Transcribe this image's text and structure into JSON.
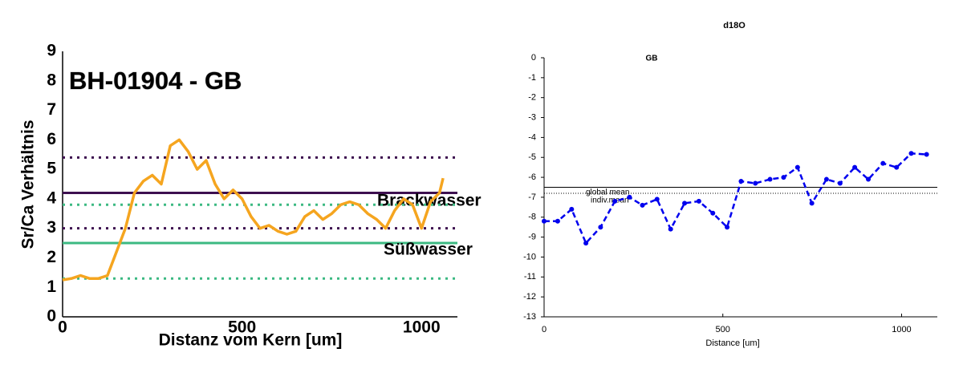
{
  "chart_data": [
    {
      "type": "line",
      "title": "BH-01904 - GB",
      "x_label": "Distanz vom Kern [um]",
      "y_label": "Sr/Ca Verhältnis",
      "xlim": [
        0,
        1100
      ],
      "ylim": [
        0,
        9
      ],
      "xticks": [
        0,
        500,
        1000
      ],
      "yticks": [
        0,
        1,
        2,
        3,
        4,
        5,
        6,
        7,
        8,
        9
      ],
      "reference_lines": [
        {
          "label": "Brackwasser",
          "value": 4.2,
          "color": "#3d0f4f",
          "style": "solid"
        },
        {
          "value": 5.4,
          "color": "#3d0f4f",
          "style": "dotted"
        },
        {
          "value": 3.0,
          "color": "#3d0f4f",
          "style": "dotted"
        },
        {
          "label": "Süßwasser",
          "value": 2.5,
          "color": "#3cb982",
          "style": "solid"
        },
        {
          "value": 3.8,
          "color": "#3cb982",
          "style": "dotted"
        },
        {
          "value": 1.3,
          "color": "#3cb982",
          "style": "dotted"
        }
      ],
      "series": [
        {
          "color": "#f5a51f",
          "line_style": "solid",
          "markers": false,
          "x": [
            0,
            25,
            50,
            75,
            100,
            125,
            150,
            175,
            200,
            225,
            250,
            275,
            300,
            325,
            350,
            375,
            400,
            425,
            450,
            475,
            500,
            525,
            550,
            575,
            600,
            625,
            650,
            675,
            700,
            725,
            750,
            775,
            800,
            825,
            850,
            875,
            900,
            925,
            950,
            975,
            1000,
            1025,
            1050,
            1060
          ],
          "values": [
            1.25,
            1.3,
            1.4,
            1.3,
            1.3,
            1.4,
            2.2,
            3.0,
            4.2,
            4.6,
            4.8,
            4.5,
            5.8,
            6.0,
            5.6,
            5.0,
            5.3,
            4.5,
            4.0,
            4.3,
            4.0,
            3.4,
            3.0,
            3.1,
            2.9,
            2.8,
            2.9,
            3.4,
            3.6,
            3.3,
            3.5,
            3.8,
            3.9,
            3.8,
            3.5,
            3.3,
            3.0,
            3.6,
            4.0,
            3.8,
            3.0,
            3.9,
            4.2,
            4.7
          ]
        }
      ]
    },
    {
      "type": "line",
      "title": "d18O",
      "annotation": "GB",
      "x_label": "Distance [um]",
      "xlim": [
        0,
        1100
      ],
      "ylim": [
        -13,
        0
      ],
      "xticks": [
        0,
        500,
        1000
      ],
      "yticks": [
        0,
        -1,
        -2,
        -3,
        -4,
        -5,
        -6,
        -7,
        -8,
        -9,
        -10,
        -11,
        -12,
        -13
      ],
      "reference_lines": [
        {
          "label": "global mean",
          "value": -6.5,
          "color": "#000000",
          "style": "solid"
        },
        {
          "label": "indiv.mean",
          "value": -6.8,
          "color": "#000000",
          "style": "dotted"
        }
      ],
      "series": [
        {
          "color": "#0000ee",
          "line_style": "dashed",
          "markers": true,
          "x": [
            0,
            38,
            77,
            117,
            158,
            198,
            239,
            275,
            316,
            354,
            393,
            433,
            472,
            512,
            551,
            591,
            632,
            670,
            709,
            749,
            790,
            828,
            869,
            907,
            948,
            986,
            1027,
            1070
          ],
          "values": [
            -8.2,
            -8.2,
            -7.6,
            -9.3,
            -8.5,
            -7.2,
            -7.0,
            -7.4,
            -7.1,
            -8.6,
            -7.3,
            -7.2,
            -7.8,
            -8.5,
            -6.2,
            -6.3,
            -6.1,
            -6.0,
            -5.5,
            -7.3,
            -6.1,
            -6.3,
            -5.5,
            -6.1,
            -5.3,
            -5.5,
            -4.8,
            -4.85
          ]
        }
      ]
    }
  ]
}
